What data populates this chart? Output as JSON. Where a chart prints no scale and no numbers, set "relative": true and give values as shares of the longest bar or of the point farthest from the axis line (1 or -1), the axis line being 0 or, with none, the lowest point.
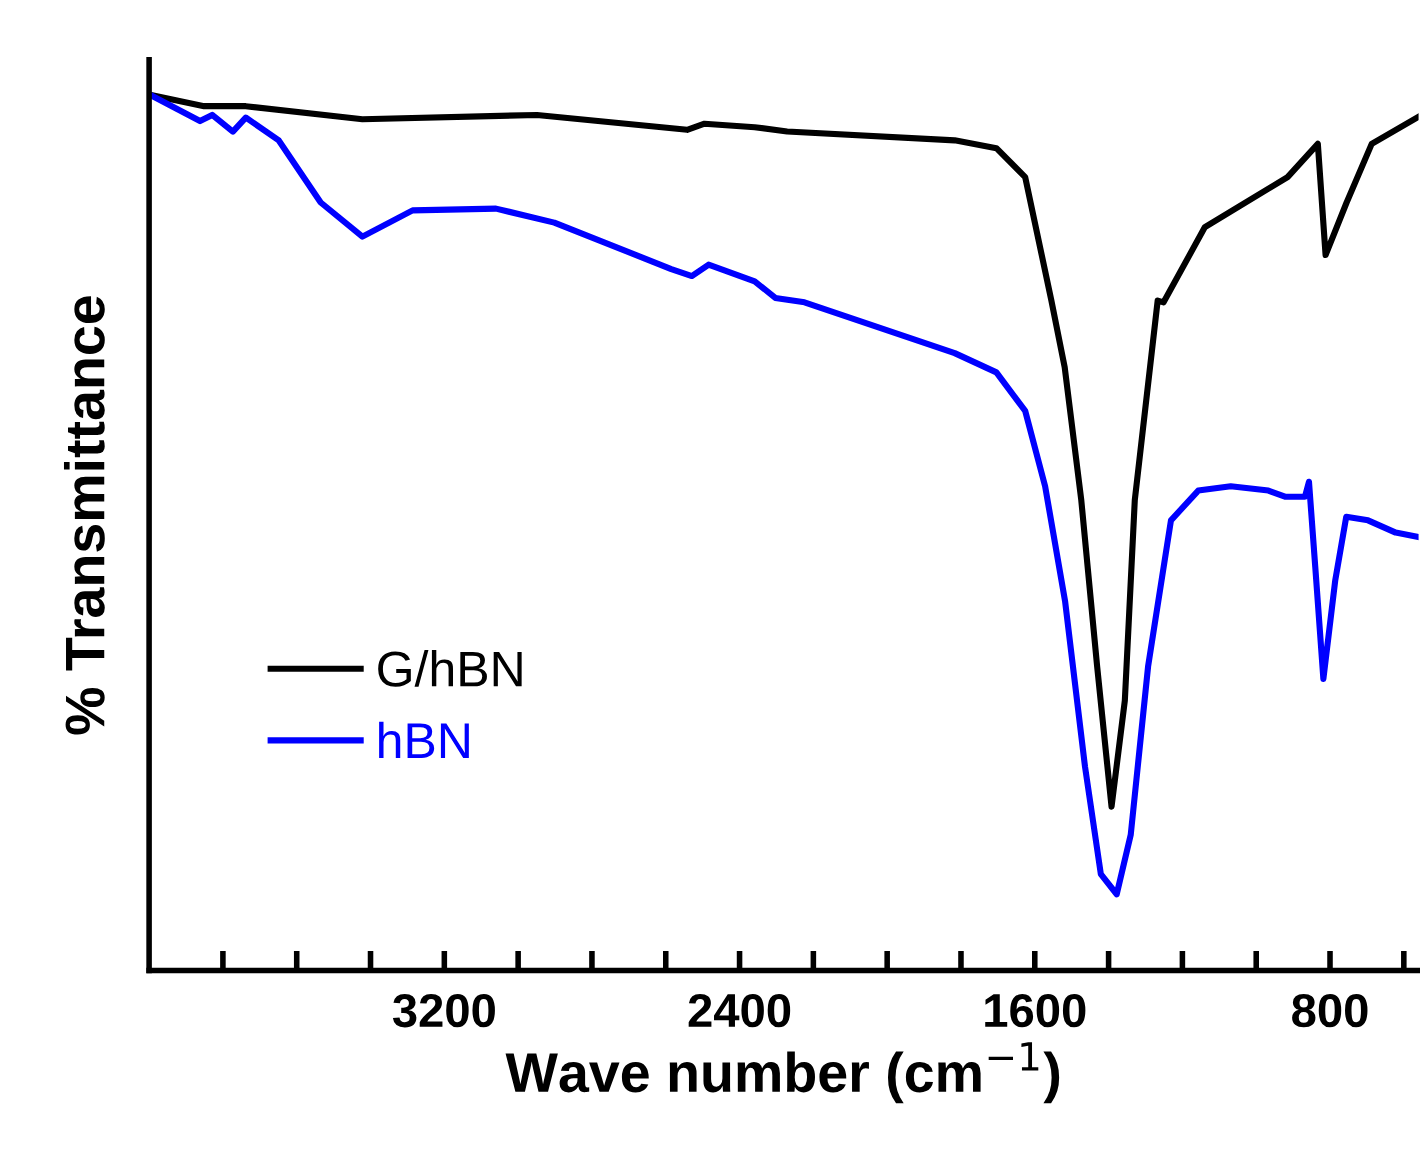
{
  "chart_data": {
    "type": "line",
    "xlabel": "Wave number (cm$^{−1}$)",
    "ylabel": "% Transmittance",
    "relative": true,
    "xlim": [
      4000,
      560
    ],
    "xticks": [
      {
        "value": 3800,
        "label": null
      },
      {
        "value": 3600,
        "label": null
      },
      {
        "value": 3400,
        "label": null
      },
      3200,
      {
        "value": 3000,
        "label": null
      },
      {
        "value": 2800,
        "label": null
      },
      {
        "value": 2600,
        "label": null
      },
      2400,
      {
        "value": 2200,
        "label": null
      },
      {
        "value": 2000,
        "label": null
      },
      {
        "value": 1800,
        "label": null
      },
      1600,
      {
        "value": 1400,
        "label": null
      },
      {
        "value": 1200,
        "label": null
      },
      {
        "value": 1000,
        "label": null
      },
      800,
      {
        "value": 600,
        "label": null
      }
    ],
    "legend": "lower left",
    "grid": false,
    "marker": "none",
    "line_style": "solid",
    "series": [
      {
        "name": "G/hBN",
        "color": "#000000",
        "x": [
          3998,
          3851,
          3738,
          3422,
          2949,
          2542,
          2495,
          2359,
          2271,
          1817,
          1704,
          1626,
          1555,
          1519,
          1474,
          1431,
          1392,
          1356,
          1329,
          1267,
          1251,
          1139,
          915,
          833,
          812,
          755,
          687,
          560
        ],
        "values": [
          1.0,
          0.987,
          0.987,
          0.972,
          0.977,
          0.96,
          0.967,
          0.963,
          0.958,
          0.948,
          0.939,
          0.906,
          0.765,
          0.689,
          0.537,
          0.347,
          0.187,
          0.308,
          0.537,
          0.765,
          0.763,
          0.849,
          0.906,
          0.944,
          0.817,
          0.877,
          0.944,
          0.975
        ]
      },
      {
        "name": "hBN",
        "color": "#0000ff",
        "x": [
          3998,
          3862,
          3829,
          3773,
          3738,
          3649,
          3535,
          3422,
          3286,
          3060,
          2902,
          2585,
          2529,
          2484,
          2359,
          2303,
          2224,
          1817,
          1704,
          1626,
          1572,
          1518,
          1464,
          1421,
          1378,
          1340,
          1293,
          1231,
          1157,
          1069,
          967,
          922,
          868,
          857,
          840,
          818,
          786,
          756,
          697,
          622,
          560
        ],
        "values": [
          1.0,
          0.97,
          0.977,
          0.958,
          0.974,
          0.948,
          0.877,
          0.838,
          0.868,
          0.87,
          0.854,
          0.801,
          0.793,
          0.806,
          0.787,
          0.768,
          0.763,
          0.705,
          0.683,
          0.639,
          0.553,
          0.422,
          0.233,
          0.11,
          0.087,
          0.155,
          0.347,
          0.514,
          0.548,
          0.553,
          0.548,
          0.541,
          0.541,
          0.558,
          0.461,
          0.333,
          0.445,
          0.518,
          0.514,
          0.5,
          0.495
        ]
      }
    ]
  }
}
